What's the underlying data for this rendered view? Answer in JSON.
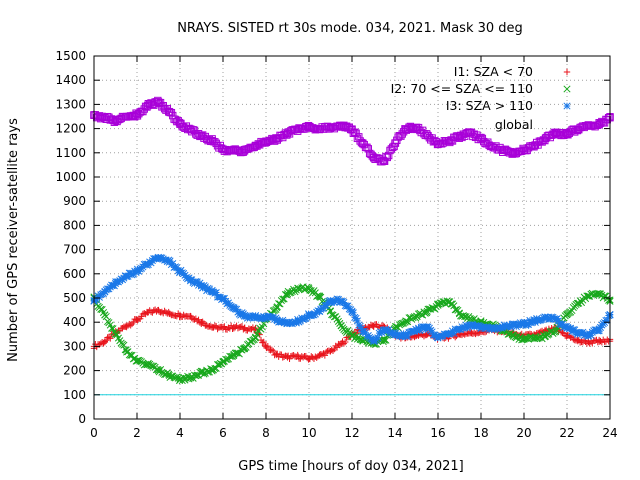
{
  "chart_data": {
    "type": "scatter",
    "title": "NRAYS. SISTED rt 30s mode. 034, 2021. Mask 30 deg",
    "xlabel": "GPS time [hours of doy 034, 2021]",
    "ylabel": "Number of GPS receiver-satellite rays",
    "xlim": [
      0,
      24
    ],
    "ylim": [
      0,
      1500
    ],
    "x_ticks": [
      "0",
      "2",
      "4",
      "6",
      "8",
      "10",
      "12",
      "14",
      "16",
      "18",
      "20",
      "22",
      "24"
    ],
    "y_ticks": [
      "0",
      "100",
      "200",
      "300",
      "400",
      "500",
      "600",
      "700",
      "800",
      "900",
      "1000",
      "1100",
      "1200",
      "1300",
      "1400",
      "1500"
    ],
    "grid": true,
    "legend_position": "top-right",
    "reference_line": {
      "y": 100,
      "color": "#1fd2df"
    },
    "series": [
      {
        "name": "I1: SZA < 70",
        "marker": "+",
        "color": "#e8141c",
        "x": [
          0,
          0.5,
          1,
          1.5,
          2,
          2.5,
          3,
          3.5,
          4,
          4.5,
          5,
          5.5,
          6,
          6.5,
          7,
          7.5,
          8,
          8.5,
          9,
          9.5,
          10,
          10.5,
          11,
          11.5,
          12,
          12.5,
          13,
          13.5,
          14,
          14.5,
          15,
          15.5,
          16,
          16.5,
          17,
          17.5,
          18,
          18.5,
          19,
          19.5,
          20,
          20.5,
          21,
          21.5,
          22,
          22.5,
          23,
          23.5,
          24
        ],
        "values": [
          300,
          320,
          355,
          385,
          410,
          440,
          450,
          435,
          430,
          425,
          400,
          380,
          375,
          380,
          375,
          370,
          300,
          265,
          255,
          258,
          250,
          262,
          280,
          310,
          350,
          375,
          385,
          380,
          345,
          335,
          345,
          350,
          335,
          340,
          350,
          355,
          360,
          368,
          365,
          352,
          342,
          348,
          362,
          372,
          345,
          322,
          318,
          320,
          322
        ]
      },
      {
        "name": "I2: 70 <= SZA <= 110",
        "marker": "x",
        "color": "#18a81c",
        "x": [
          0,
          0.5,
          1,
          1.5,
          2,
          2.5,
          3,
          3.5,
          4,
          4.5,
          5,
          5.5,
          6,
          6.5,
          7,
          7.5,
          8,
          8.5,
          9,
          9.5,
          10,
          10.5,
          11,
          11.5,
          12,
          12.5,
          13,
          13.5,
          14,
          14.5,
          15,
          15.5,
          16,
          16.5,
          17,
          17.5,
          18,
          18.5,
          19,
          19.5,
          20,
          20.5,
          21,
          21.5,
          22,
          22.5,
          23,
          23.5,
          24
        ],
        "values": [
          500,
          430,
          350,
          285,
          240,
          225,
          200,
          180,
          165,
          172,
          190,
          205,
          235,
          262,
          290,
          335,
          415,
          460,
          518,
          540,
          538,
          505,
          445,
          385,
          345,
          325,
          310,
          325,
          375,
          405,
          425,
          445,
          470,
          485,
          435,
          415,
          400,
          388,
          368,
          342,
          332,
          332,
          342,
          368,
          432,
          478,
          508,
          518,
          492
        ]
      },
      {
        "name": "I3: SZA > 110",
        "marker": "*",
        "color": "#1a78e8",
        "x": [
          0,
          0.5,
          1,
          1.5,
          2,
          2.5,
          3,
          3.5,
          4,
          4.5,
          5,
          5.5,
          6,
          6.5,
          7,
          7.5,
          8,
          8.5,
          9,
          9.5,
          10,
          10.5,
          11,
          11.5,
          12,
          12.5,
          13,
          13.5,
          14,
          14.5,
          15,
          15.5,
          16,
          16.5,
          17,
          17.5,
          18,
          18.5,
          19,
          19.5,
          20,
          20.5,
          21,
          21.5,
          22,
          22.5,
          23,
          23.5,
          24
        ],
        "values": [
          490,
          525,
          560,
          590,
          612,
          640,
          668,
          648,
          610,
          575,
          550,
          525,
          498,
          458,
          425,
          422,
          420,
          410,
          395,
          405,
          430,
          445,
          490,
          488,
          442,
          360,
          325,
          368,
          348,
          345,
          368,
          378,
          335,
          352,
          372,
          385,
          378,
          370,
          382,
          388,
          392,
          405,
          420,
          412,
          375,
          355,
          345,
          372,
          432
        ]
      },
      {
        "name": "global",
        "marker": "square",
        "color": "#a800d8",
        "x": [
          0,
          0.5,
          1,
          1.5,
          2,
          2.5,
          3,
          3.5,
          4,
          4.5,
          5,
          5.5,
          6,
          6.5,
          7,
          7.5,
          8,
          8.5,
          9,
          9.5,
          10,
          10.5,
          11,
          11.5,
          12,
          12.5,
          13,
          13.5,
          14,
          14.5,
          15,
          15.5,
          16,
          16.5,
          17,
          17.5,
          18,
          18.5,
          19,
          19.5,
          20,
          20.5,
          21,
          21.5,
          22,
          22.5,
          23,
          23.5,
          24
        ],
        "values": [
          1255,
          1245,
          1232,
          1248,
          1258,
          1295,
          1310,
          1270,
          1218,
          1198,
          1168,
          1150,
          1115,
          1108,
          1108,
          1128,
          1148,
          1158,
          1180,
          1198,
          1205,
          1198,
          1205,
          1210,
          1195,
          1140,
          1082,
          1065,
          1140,
          1198,
          1205,
          1172,
          1135,
          1148,
          1168,
          1182,
          1155,
          1128,
          1110,
          1098,
          1112,
          1130,
          1160,
          1180,
          1178,
          1198,
          1210,
          1218,
          1245
        ]
      }
    ]
  }
}
